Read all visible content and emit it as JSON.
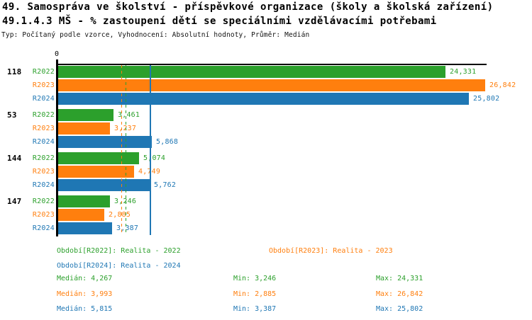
{
  "header": {
    "title_line1": "49. Samospráva ve školství - příspěvkové organizace (školy a školská zařízení)",
    "title_line2": "49.1.4.3 MŠ - % zastoupení dětí se speciálními vzdělávacími potřebami",
    "subtitle": "Typ: Počítaný podle vzorce, Vyhodnocení: Absolutní hodnoty, Průměr: Medián"
  },
  "colors": {
    "r2022": "#2ca02c",
    "r2023": "#ff7f0e",
    "r2024": "#1f77b4",
    "axis": "#000000"
  },
  "chart_data": {
    "type": "bar",
    "orientation": "horizontal",
    "title": "49.1.4.3 MŠ - % zastoupení dětí se speciálními vzdělávacími potřebami",
    "axis": {
      "origin_label": "0",
      "min": 0,
      "scale_max": 26.842
    },
    "series_labels": [
      "R2022",
      "R2023",
      "R2024"
    ],
    "groups": [
      {
        "label": "118",
        "values": [
          24.331,
          26.842,
          25.802
        ],
        "value_labels": [
          "24,331",
          "26,842",
          "25,802"
        ]
      },
      {
        "label": "53",
        "values": [
          3.461,
          3.237,
          5.868
        ],
        "value_labels": [
          "3,461",
          "3,237",
          "5,868"
        ]
      },
      {
        "label": "144",
        "values": [
          5.074,
          4.749,
          5.762
        ],
        "value_labels": [
          "5,074",
          "4,749",
          "5,762"
        ]
      },
      {
        "label": "147",
        "values": [
          3.246,
          2.885,
          3.387
        ],
        "value_labels": [
          "3,246",
          "2,885",
          "3,387"
        ]
      }
    ],
    "median_lines": [
      {
        "series": "R2022",
        "value": 4.267,
        "style": "dashed"
      },
      {
        "series": "R2023",
        "value": 3.993,
        "style": "dashed"
      },
      {
        "series": "R2024",
        "value": 5.815,
        "style": "solid"
      }
    ],
    "summary": {
      "R2022": {
        "median": 4.267,
        "min": 3.246,
        "max": 24.331
      },
      "R2023": {
        "median": 3.993,
        "min": 2.885,
        "max": 26.842
      },
      "R2024": {
        "median": 5.815,
        "min": 3.387,
        "max": 25.802
      }
    }
  },
  "legend": {
    "items": [
      {
        "series": "R2022",
        "label": "Období[R2022]: Realita - 2022"
      },
      {
        "series": "R2023",
        "label": "Období[R2023]: Realita - 2023"
      },
      {
        "series": "R2024",
        "label": "Období[R2024]: Realita - 2024"
      }
    ]
  },
  "stats": {
    "rows": [
      {
        "series": "R2022",
        "median_label": "Medián: 4,267",
        "min_label": "Min: 3,246",
        "max_label": "Max: 24,331"
      },
      {
        "series": "R2023",
        "median_label": "Medián: 3,993",
        "min_label": "Min: 2,885",
        "max_label": "Max: 26,842"
      },
      {
        "series": "R2024",
        "median_label": "Medián: 5,815",
        "min_label": "Min: 3,387",
        "max_label": "Max: 25,802"
      }
    ]
  }
}
